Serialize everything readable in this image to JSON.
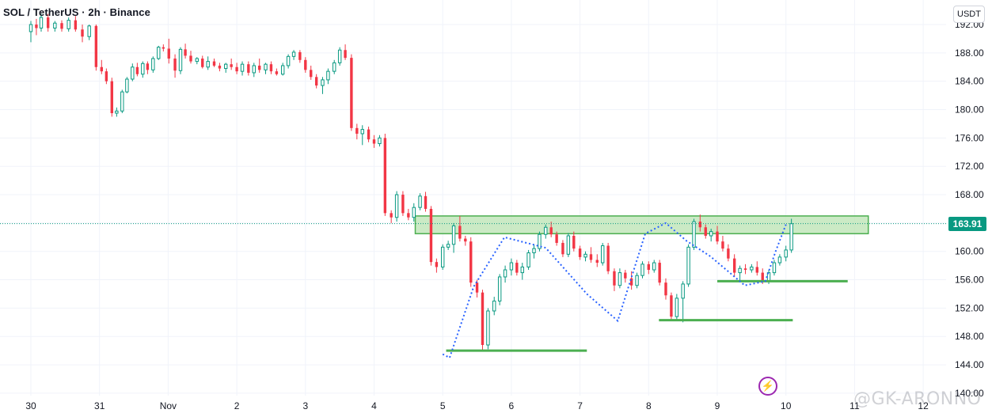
{
  "header": {
    "title": "SOL / TetherUS · 2h · Binance",
    "currency": "USDT"
  },
  "last_price_label": "163.91",
  "watermark": "@GK-ARONNO",
  "logo_glyph": "⚡",
  "colors": {
    "up": "#089981",
    "down": "#f23645",
    "grid": "#f0f3fa",
    "zone_fill": "#b9e3b2",
    "zone_stroke": "#4caf50",
    "support": "#4caf50",
    "pattern": "#2962ff",
    "price_line": "#089981",
    "logo": "#9c27b0"
  },
  "chart_data": {
    "type": "candlestick",
    "title": "SOL / TetherUS · 2h · Binance",
    "xlabel": "",
    "ylabel": "",
    "ylim": [
      139,
      194
    ],
    "y_ticks": [
      "192.00",
      "188.00",
      "184.00",
      "180.00",
      "176.00",
      "172.00",
      "168.00",
      "164.00",
      "160.00",
      "156.00",
      "152.00",
      "148.00",
      "144.00",
      "140.00"
    ],
    "x_ticks": [
      {
        "label": "30",
        "day": 0
      },
      {
        "label": "31",
        "day": 1
      },
      {
        "label": "Nov",
        "day": 2
      },
      {
        "label": "2",
        "day": 3
      },
      {
        "label": "3",
        "day": 4
      },
      {
        "label": "4",
        "day": 5
      },
      {
        "label": "5",
        "day": 6
      },
      {
        "label": "6",
        "day": 7
      },
      {
        "label": "7",
        "day": 8
      },
      {
        "label": "8",
        "day": 9
      },
      {
        "label": "9",
        "day": 10
      },
      {
        "label": "10",
        "day": 11
      },
      {
        "label": "11",
        "day": 12
      },
      {
        "label": "12",
        "day": 13
      }
    ],
    "grid": true,
    "last_price": 163.91,
    "resistance_zone": {
      "low": 162.5,
      "high": 165.0,
      "day_start": 5.6,
      "day_end": 12.2
    },
    "support_lines": [
      {
        "price": 146.0,
        "day_start": 6.05,
        "day_end": 8.1
      },
      {
        "price": 150.3,
        "day_start": 9.15,
        "day_end": 11.1
      },
      {
        "price": 155.8,
        "day_start": 10.0,
        "day_end": 11.9
      }
    ],
    "pattern_path": [
      {
        "day": 6.0,
        "price": 145.5
      },
      {
        "day": 6.1,
        "price": 145.0
      },
      {
        "day": 6.45,
        "price": 155.0
      },
      {
        "day": 6.9,
        "price": 162.0
      },
      {
        "day": 7.5,
        "price": 160.5
      },
      {
        "day": 8.1,
        "price": 154.0
      },
      {
        "day": 8.55,
        "price": 150.2
      },
      {
        "day": 8.95,
        "price": 162.5
      },
      {
        "day": 9.25,
        "price": 164.0
      },
      {
        "day": 9.55,
        "price": 161.5
      },
      {
        "day": 9.9,
        "price": 159.3
      },
      {
        "day": 10.4,
        "price": 155.2
      },
      {
        "day": 10.7,
        "price": 155.8
      },
      {
        "day": 10.85,
        "price": 160.0
      },
      {
        "day": 11.0,
        "price": 163.8
      }
    ],
    "candles": [
      [
        0.0,
        191.0,
        192.5,
        189.5,
        192.0
      ],
      [
        0.08,
        192.0,
        192.8,
        190.5,
        191.5
      ],
      [
        0.15,
        191.5,
        193.5,
        191.0,
        193.0
      ],
      [
        0.25,
        193.0,
        193.5,
        191.0,
        191.5
      ],
      [
        0.35,
        191.5,
        192.5,
        191.0,
        192.2
      ],
      [
        0.45,
        192.2,
        192.6,
        191.0,
        191.4
      ],
      [
        0.55,
        191.4,
        193.0,
        191.0,
        192.6
      ],
      [
        0.65,
        192.6,
        193.2,
        191.0,
        191.3
      ],
      [
        0.75,
        191.3,
        192.0,
        189.5,
        190.3
      ],
      [
        0.85,
        190.3,
        192.0,
        189.8,
        191.8
      ],
      [
        0.95,
        191.8,
        192.0,
        185.5,
        186.0
      ],
      [
        1.03,
        186.0,
        187.0,
        185.0,
        185.4
      ],
      [
        1.1,
        185.4,
        185.8,
        183.6,
        184.0
      ],
      [
        1.18,
        184.0,
        184.5,
        179.0,
        179.5
      ],
      [
        1.25,
        179.5,
        180.3,
        179.0,
        179.8
      ],
      [
        1.33,
        179.8,
        182.8,
        179.5,
        182.5
      ],
      [
        1.4,
        182.5,
        184.6,
        182.3,
        184.3
      ],
      [
        1.48,
        184.3,
        186.5,
        184.0,
        186.0
      ],
      [
        1.55,
        186.0,
        186.6,
        184.7,
        185.0
      ],
      [
        1.63,
        185.0,
        186.8,
        184.5,
        186.5
      ],
      [
        1.7,
        186.5,
        186.8,
        185.0,
        185.6
      ],
      [
        1.78,
        185.6,
        187.5,
        185.2,
        187.2
      ],
      [
        1.86,
        187.2,
        189.0,
        187.0,
        188.8
      ],
      [
        1.93,
        188.8,
        189.2,
        188.2,
        188.6
      ],
      [
        2.01,
        188.6,
        190.0,
        186.5,
        187.2
      ],
      [
        2.1,
        187.2,
        187.8,
        184.5,
        185.5
      ],
      [
        2.18,
        185.5,
        188.8,
        185.0,
        188.5
      ],
      [
        2.25,
        188.5,
        189.3,
        187.2,
        187.6
      ],
      [
        2.33,
        187.6,
        188.3,
        186.5,
        186.8
      ],
      [
        2.42,
        186.8,
        187.4,
        186.4,
        187.2
      ],
      [
        2.5,
        187.2,
        187.6,
        185.8,
        186.0
      ],
      [
        2.58,
        186.0,
        187.5,
        185.6,
        186.8
      ],
      [
        2.67,
        186.8,
        187.2,
        186.0,
        186.2
      ],
      [
        2.75,
        186.2,
        186.6,
        185.4,
        185.8
      ],
      [
        2.84,
        185.8,
        186.6,
        185.2,
        186.4
      ],
      [
        2.92,
        186.4,
        187.2,
        185.6,
        186.0
      ],
      [
        3.0,
        186.0,
        186.6,
        185.0,
        185.4
      ],
      [
        3.08,
        185.4,
        186.8,
        184.8,
        186.4
      ],
      [
        3.17,
        186.4,
        186.8,
        184.8,
        185.2
      ],
      [
        3.25,
        185.2,
        186.6,
        184.6,
        186.2
      ],
      [
        3.33,
        186.2,
        187.2,
        185.2,
        185.6
      ],
      [
        3.42,
        185.6,
        186.6,
        185.0,
        186.4
      ],
      [
        3.5,
        186.4,
        186.8,
        185.0,
        185.4
      ],
      [
        3.58,
        185.4,
        185.8,
        184.8,
        185.0
      ],
      [
        3.67,
        185.0,
        186.6,
        184.8,
        186.2
      ],
      [
        3.75,
        186.2,
        187.8,
        185.8,
        187.5
      ],
      [
        3.83,
        187.5,
        188.4,
        187.0,
        188.1
      ],
      [
        3.92,
        188.1,
        188.4,
        186.6,
        187.0
      ],
      [
        4.0,
        187.0,
        187.4,
        185.2,
        185.6
      ],
      [
        4.08,
        185.6,
        186.2,
        184.2,
        184.6
      ],
      [
        4.16,
        184.6,
        185.0,
        183.0,
        183.4
      ],
      [
        4.25,
        183.4,
        184.6,
        182.2,
        184.2
      ],
      [
        4.33,
        184.2,
        185.8,
        183.6,
        185.4
      ],
      [
        4.42,
        185.4,
        187.0,
        185.0,
        186.6
      ],
      [
        4.5,
        186.6,
        188.8,
        186.2,
        188.4
      ],
      [
        4.58,
        188.4,
        189.2,
        187.0,
        187.3
      ],
      [
        4.67,
        187.3,
        187.8,
        177.0,
        177.4
      ],
      [
        4.75,
        177.4,
        178.0,
        175.8,
        176.6
      ],
      [
        4.83,
        176.6,
        177.8,
        175.0,
        177.2
      ],
      [
        4.92,
        177.2,
        177.6,
        175.4,
        175.8
      ],
      [
        5.0,
        175.8,
        176.4,
        174.6,
        175.2
      ],
      [
        5.08,
        175.2,
        176.4,
        174.8,
        176.0
      ],
      [
        5.16,
        176.0,
        176.6,
        165.0,
        165.4
      ],
      [
        5.25,
        165.4,
        165.8,
        164.0,
        164.8
      ],
      [
        5.33,
        164.8,
        168.5,
        164.2,
        168.0
      ],
      [
        5.42,
        168.0,
        168.5,
        165.0,
        165.4
      ],
      [
        5.5,
        165.4,
        166.0,
        164.4,
        164.8
      ],
      [
        5.58,
        164.8,
        166.8,
        164.2,
        166.2
      ],
      [
        5.67,
        166.2,
        168.2,
        165.8,
        167.8
      ],
      [
        5.75,
        167.8,
        168.4,
        165.6,
        166.0
      ],
      [
        5.83,
        166.0,
        166.4,
        158.0,
        158.5
      ],
      [
        5.91,
        158.5,
        159.0,
        157.0,
        157.8
      ],
      [
        6.0,
        157.8,
        161.0,
        157.4,
        160.6
      ],
      [
        6.08,
        160.6,
        161.5,
        160.2,
        161.0
      ],
      [
        6.16,
        161.0,
        164.0,
        159.8,
        163.6
      ],
      [
        6.25,
        163.6,
        165.0,
        161.4,
        161.8
      ],
      [
        6.33,
        161.8,
        162.2,
        160.8,
        161.4
      ],
      [
        6.41,
        161.4,
        162.0,
        155.0,
        155.6
      ],
      [
        6.5,
        155.6,
        156.0,
        153.5,
        154.2
      ],
      [
        6.58,
        154.2,
        154.6,
        146.0,
        146.8
      ],
      [
        6.66,
        146.8,
        152.0,
        146.2,
        151.6
      ],
      [
        6.75,
        151.6,
        153.6,
        151.0,
        153.0
      ],
      [
        6.83,
        153.0,
        156.8,
        152.4,
        156.4
      ],
      [
        6.91,
        156.4,
        158.0,
        155.6,
        157.4
      ],
      [
        7.0,
        157.4,
        159.0,
        156.6,
        158.4
      ],
      [
        7.08,
        158.4,
        158.8,
        156.6,
        157.0
      ],
      [
        7.16,
        157.0,
        158.4,
        156.0,
        157.8
      ],
      [
        7.25,
        157.8,
        160.2,
        157.4,
        159.8
      ],
      [
        7.33,
        159.8,
        161.0,
        159.0,
        160.4
      ],
      [
        7.41,
        160.4,
        162.8,
        160.0,
        162.4
      ],
      [
        7.5,
        162.4,
        163.8,
        161.8,
        163.4
      ],
      [
        7.58,
        163.4,
        164.2,
        162.0,
        162.4
      ],
      [
        7.66,
        162.4,
        162.8,
        160.8,
        161.2
      ],
      [
        7.75,
        161.2,
        161.6,
        159.2,
        159.6
      ],
      [
        7.83,
        159.6,
        162.6,
        159.2,
        162.2
      ],
      [
        7.91,
        162.2,
        162.8,
        160.0,
        160.4
      ],
      [
        8.0,
        160.4,
        160.8,
        158.8,
        159.2
      ],
      [
        8.08,
        159.2,
        160.0,
        158.6,
        159.6
      ],
      [
        8.16,
        159.6,
        160.6,
        158.4,
        158.8
      ],
      [
        8.25,
        158.8,
        159.6,
        157.8,
        158.4
      ],
      [
        8.33,
        158.4,
        161.2,
        158.0,
        160.8
      ],
      [
        8.41,
        160.8,
        161.2,
        156.8,
        157.2
      ],
      [
        8.5,
        157.2,
        157.6,
        154.4,
        155.2
      ],
      [
        8.58,
        155.2,
        157.6,
        154.8,
        157.0
      ],
      [
        8.66,
        157.0,
        157.4,
        155.6,
        156.2
      ],
      [
        8.75,
        156.2,
        157.2,
        154.6,
        155.2
      ],
      [
        8.83,
        155.2,
        157.0,
        154.8,
        156.6
      ],
      [
        8.91,
        156.6,
        158.6,
        156.2,
        158.2
      ],
      [
        9.0,
        158.2,
        158.6,
        156.8,
        157.4
      ],
      [
        9.08,
        157.4,
        158.8,
        157.0,
        158.4
      ],
      [
        9.16,
        158.4,
        158.8,
        155.2,
        155.6
      ],
      [
        9.25,
        155.6,
        156.2,
        153.2,
        153.8
      ],
      [
        9.33,
        153.8,
        154.2,
        150.4,
        150.8
      ],
      [
        9.41,
        150.8,
        154.0,
        150.2,
        153.4
      ],
      [
        9.5,
        153.4,
        155.8,
        150.0,
        155.4
      ],
      [
        9.58,
        155.4,
        161.0,
        155.0,
        160.6
      ],
      [
        9.66,
        160.6,
        164.6,
        160.2,
        164.2
      ],
      [
        9.75,
        164.2,
        165.2,
        162.8,
        163.4
      ],
      [
        9.83,
        163.4,
        163.8,
        161.8,
        162.2
      ],
      [
        9.91,
        162.2,
        163.2,
        161.4,
        162.8
      ],
      [
        10.0,
        162.8,
        163.6,
        161.0,
        161.4
      ],
      [
        10.08,
        161.4,
        162.2,
        160.0,
        160.4
      ],
      [
        10.16,
        160.4,
        161.0,
        158.6,
        159.0
      ],
      [
        10.25,
        159.0,
        159.6,
        156.4,
        157.0
      ],
      [
        10.33,
        157.0,
        158.0,
        155.8,
        157.6
      ],
      [
        10.41,
        157.6,
        158.2,
        156.8,
        157.4
      ],
      [
        10.5,
        157.4,
        158.2,
        157.0,
        157.8
      ],
      [
        10.58,
        157.8,
        158.6,
        156.6,
        157.0
      ],
      [
        10.66,
        157.0,
        157.6,
        155.4,
        155.8
      ],
      [
        10.75,
        155.8,
        157.4,
        155.4,
        157.0
      ],
      [
        10.83,
        157.0,
        158.8,
        156.6,
        158.4
      ],
      [
        10.91,
        158.4,
        159.6,
        158.0,
        159.2
      ],
      [
        11.0,
        159.2,
        160.8,
        158.6,
        160.2
      ],
      [
        11.08,
        160.2,
        164.6,
        159.8,
        163.91
      ]
    ]
  }
}
